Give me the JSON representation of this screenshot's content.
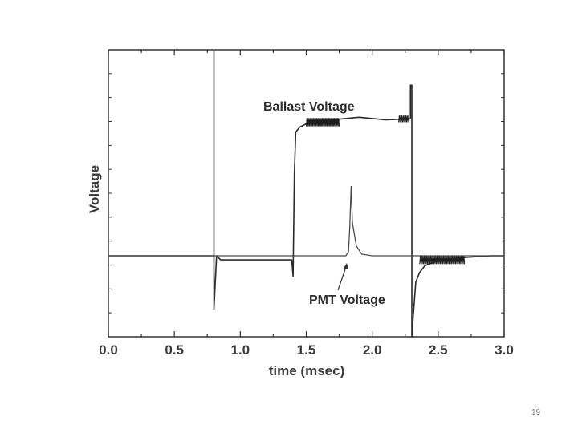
{
  "slide": {
    "page_number": "19"
  },
  "chart_data": {
    "type": "line",
    "xlabel": "time (msec)",
    "ylabel": "Voltage",
    "xlim": [
      0.0,
      3.0
    ],
    "ylim": [
      -1.0,
      2.5
    ],
    "x_ticks": [
      "0.0",
      "0.5",
      "1.0",
      "1.5",
      "2.0",
      "2.5",
      "3.0"
    ],
    "grid": false,
    "annotations": [
      {
        "text": "Ballast Voltage"
      },
      {
        "text": "PMT Voltage"
      }
    ],
    "series": [
      {
        "name": "Ballast Voltage",
        "x": [
          0.0,
          0.8,
          0.8,
          0.8,
          0.82,
          0.85,
          0.9,
          1.0,
          1.2,
          1.39,
          1.4,
          1.41,
          1.42,
          1.45,
          1.5,
          1.7,
          1.9,
          2.1,
          2.29,
          2.29,
          2.3,
          2.3,
          2.31,
          2.33,
          2.36,
          2.4,
          2.5,
          2.7,
          2.9,
          3.0
        ],
        "y": [
          0.0,
          0.0,
          2.5,
          -0.65,
          0.0,
          -0.05,
          -0.05,
          -0.05,
          -0.05,
          -0.05,
          -0.25,
          1.0,
          1.5,
          1.56,
          1.6,
          1.65,
          1.68,
          1.65,
          1.66,
          2.07,
          2.07,
          -1.0,
          -0.75,
          -0.32,
          -0.2,
          -0.12,
          -0.06,
          -0.02,
          0.0,
          0.0
        ]
      },
      {
        "name": "PMT Voltage",
        "x": [
          0.0,
          0.5,
          1.0,
          1.5,
          1.8,
          1.82,
          1.83,
          1.84,
          1.85,
          1.88,
          1.92,
          2.0,
          2.3,
          2.6,
          3.0
        ],
        "y": [
          0.0,
          0.0,
          0.0,
          0.0,
          0.0,
          0.05,
          0.35,
          0.84,
          0.4,
          0.12,
          0.02,
          0.0,
          0.0,
          0.0,
          0.0
        ]
      }
    ]
  }
}
